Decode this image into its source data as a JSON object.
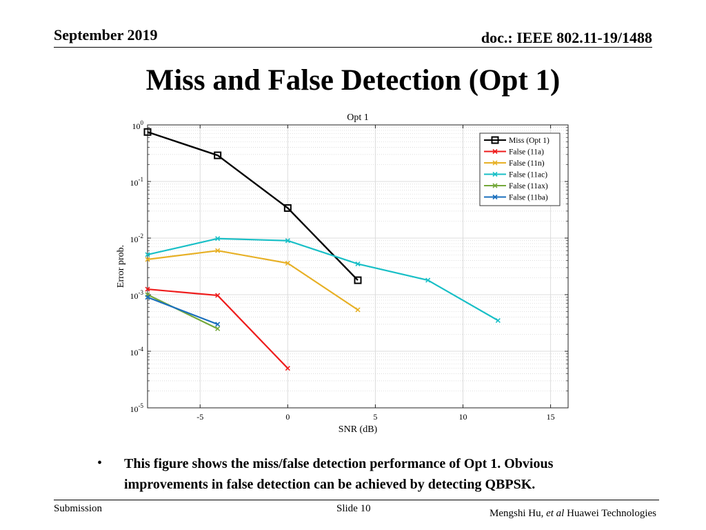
{
  "header": {
    "date": "September 2019",
    "doc": "doc.: IEEE 802.11-19/1488"
  },
  "slide": {
    "title": "Miss and False Detection (Opt 1)",
    "bullet": "This figure shows the miss/false detection performance of Opt 1. Obvious improvements in false detection can be achieved by detecting QBPSK."
  },
  "footer": {
    "left": "Submission",
    "center": "Slide 10",
    "author": "Mengshi Hu,",
    "etal": "et al",
    "org": "Huawei Technologies"
  },
  "chart_data": {
    "type": "line",
    "title": "Opt 1",
    "xlabel": "SNR (dB)",
    "ylabel": "Error prob.",
    "xlim": [
      -8,
      16
    ],
    "ylim": [
      1e-05,
      1
    ],
    "yscale": "log",
    "grid": true,
    "legend_position": "top-right",
    "xticks": [
      -5,
      0,
      5,
      10,
      15
    ],
    "yticks": [
      {
        "value": 1,
        "base": "10",
        "exp": "0"
      },
      {
        "value": 0.1,
        "base": "10",
        "exp": "-1"
      },
      {
        "value": 0.01,
        "base": "10",
        "exp": "-2"
      },
      {
        "value": 0.001,
        "base": "10",
        "exp": "-3"
      },
      {
        "value": 0.0001,
        "base": "10",
        "exp": "-4"
      },
      {
        "value": 1e-05,
        "base": "10",
        "exp": "-5"
      }
    ],
    "series": [
      {
        "name": "Miss (Opt 1)",
        "color": "#000000",
        "marker": "square",
        "x": [
          -8,
          -4,
          0,
          4
        ],
        "y": [
          0.75,
          0.29,
          0.034,
          0.0018
        ]
      },
      {
        "name": "False (11a)",
        "color": "#ee1c1c",
        "marker": "x",
        "x": [
          -8,
          -4,
          0
        ],
        "y": [
          0.00125,
          0.00097,
          5e-05
        ]
      },
      {
        "name": "False (11n)",
        "color": "#e7b025",
        "marker": "x",
        "x": [
          -8,
          -4,
          0,
          4
        ],
        "y": [
          0.0042,
          0.006,
          0.0036,
          0.00054
        ]
      },
      {
        "name": "False (11ac)",
        "color": "#18bfc6",
        "marker": "x",
        "x": [
          -8,
          -4,
          0,
          4,
          8,
          12
        ],
        "y": [
          0.0051,
          0.0098,
          0.009,
          0.0035,
          0.0018,
          0.00035
        ]
      },
      {
        "name": "False (11ax)",
        "color": "#74a83a",
        "marker": "x",
        "x": [
          -8,
          -4
        ],
        "y": [
          0.001,
          0.00025
        ]
      },
      {
        "name": "False (11ba)",
        "color": "#1a6fbd",
        "marker": "x",
        "x": [
          -8,
          -4
        ],
        "y": [
          0.0009,
          0.0003
        ]
      }
    ]
  }
}
